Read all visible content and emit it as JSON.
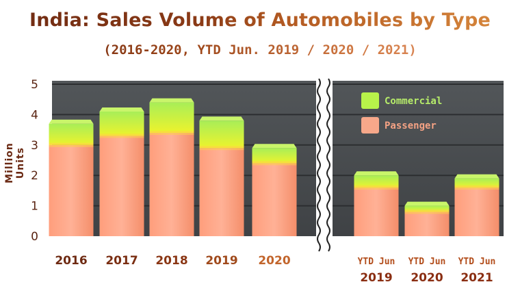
{
  "title": "India: Sales Volume of Automobiles by Type",
  "subtitle": "(2016-2020, YTD Jun. 2019 / 2020 / 2021)",
  "chart_data": {
    "type": "bar",
    "stacked": true,
    "title": "India: Sales Volume of Automobiles by Type",
    "subtitle": "(2016-2020, YTD Jun. 2019 / 2020 / 2021)",
    "ylabel": "Million Units",
    "ylim": [
      0,
      5
    ],
    "yticks": [
      "0",
      "1",
      "2",
      "3",
      "4",
      "5"
    ],
    "grid": true,
    "legend_position": "top-right",
    "categories": [
      {
        "label": "2016",
        "prefix": ""
      },
      {
        "label": "2017",
        "prefix": ""
      },
      {
        "label": "2018",
        "prefix": ""
      },
      {
        "label": "2019",
        "prefix": ""
      },
      {
        "label": "2020",
        "prefix": ""
      },
      {
        "label": "2019",
        "prefix": "YTD Jun"
      },
      {
        "label": "2020",
        "prefix": "YTD Jun"
      },
      {
        "label": "2021",
        "prefix": "YTD Jun"
      }
    ],
    "series": [
      {
        "name": "Passenger",
        "color": "#f7a88a",
        "values": [
          3.0,
          3.3,
          3.4,
          2.9,
          2.4,
          1.6,
          0.8,
          1.6
        ]
      },
      {
        "name": "Commercial",
        "color": "#b8f24a",
        "values": [
          0.7,
          0.8,
          1.0,
          0.9,
          0.5,
          0.4,
          0.2,
          0.3
        ]
      }
    ],
    "axis_break": "between 2020 and YTD Jun 2019"
  }
}
